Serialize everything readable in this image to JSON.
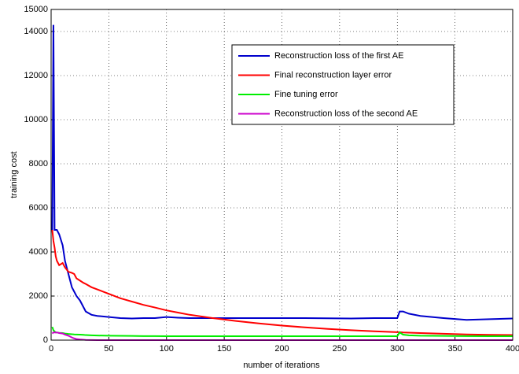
{
  "chart_data": {
    "type": "line",
    "x_label": "number of iterations",
    "y_label": "training cost",
    "x": [
      1,
      2,
      3,
      4,
      5,
      7,
      10,
      12,
      15,
      18,
      20,
      22,
      25,
      28,
      30,
      35,
      40,
      50,
      60,
      70,
      80,
      90,
      100,
      110,
      120,
      140,
      160,
      180,
      200,
      220,
      240,
      260,
      280,
      300,
      302,
      305,
      310,
      320,
      340,
      360,
      380,
      400
    ],
    "series": [
      {
        "name": "Reconstruction loss of the first AE",
        "color": "#0000cc",
        "values": [
          5000,
          14300,
          5000,
          5000,
          5000,
          4800,
          4300,
          3600,
          3000,
          2400,
          2200,
          2000,
          1800,
          1500,
          1300,
          1150,
          1100,
          1050,
          1000,
          980,
          1000,
          1000,
          1050,
          1020,
          1000,
          1000,
          1000,
          1000,
          1000,
          1000,
          990,
          980,
          1000,
          1000,
          1300,
          1300,
          1200,
          1100,
          1000,
          920,
          950,
          980
        ]
      },
      {
        "name": "Final reconstruction layer error",
        "color": "#ff0000",
        "values": [
          5000,
          4500,
          4200,
          3800,
          3600,
          3400,
          3500,
          3300,
          3100,
          3050,
          3000,
          2800,
          2700,
          2600,
          2550,
          2400,
          2300,
          2100,
          1900,
          1750,
          1600,
          1480,
          1350,
          1250,
          1150,
          1000,
          870,
          760,
          660,
          580,
          510,
          450,
          400,
          360,
          360,
          350,
          340,
          320,
          290,
          260,
          240,
          230
        ]
      },
      {
        "name": "Fine tuning error",
        "color": "#00ee00",
        "values": [
          600,
          450,
          400,
          350,
          350,
          330,
          320,
          300,
          280,
          270,
          260,
          255,
          250,
          240,
          230,
          220,
          210,
          200,
          195,
          190,
          185,
          185,
          180,
          180,
          180,
          180,
          180,
          180,
          180,
          180,
          180,
          180,
          180,
          180,
          350,
          250,
          220,
          200,
          190,
          185,
          180,
          180
        ]
      },
      {
        "name": "Reconstruction loss of the second AE",
        "color": "#cc00cc",
        "values": [
          300,
          350,
          350,
          350,
          350,
          320,
          300,
          250,
          200,
          120,
          80,
          50,
          30,
          20,
          10,
          5,
          0,
          0,
          0,
          0,
          0,
          0,
          0,
          0,
          0,
          0,
          0,
          0,
          0,
          0,
          0,
          0,
          0,
          0,
          0,
          0,
          0,
          0,
          0,
          0,
          0,
          0
        ]
      }
    ],
    "xlim": [
      0,
      400
    ],
    "xticks": [
      0,
      50,
      100,
      150,
      200,
      250,
      300,
      350,
      400
    ],
    "ylim": [
      0,
      15000
    ],
    "yticks": [
      0,
      2000,
      4000,
      6000,
      8000,
      10000,
      12000,
      14000,
      15000
    ],
    "grid": true,
    "legend": "upper right"
  }
}
